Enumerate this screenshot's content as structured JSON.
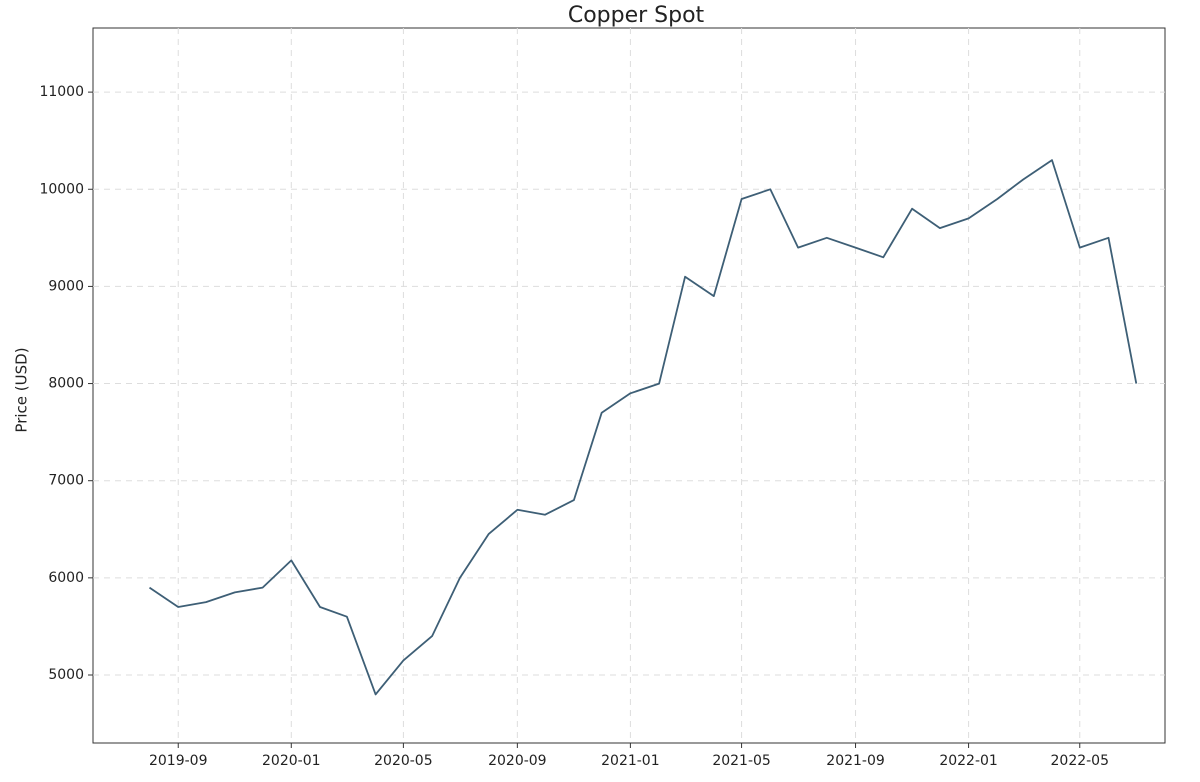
{
  "chart_data": {
    "type": "line",
    "title": "Copper Spot",
    "y_label": "Price (USD)",
    "x": [
      "2019-08",
      "2019-09",
      "2019-10",
      "2019-11",
      "2019-12",
      "2020-01",
      "2020-02",
      "2020-03",
      "2020-04",
      "2020-05",
      "2020-06",
      "2020-07",
      "2020-08",
      "2020-09",
      "2020-10",
      "2020-11",
      "2020-12",
      "2021-01",
      "2021-02",
      "2021-03",
      "2021-04",
      "2021-05",
      "2021-06",
      "2021-07",
      "2021-08",
      "2021-09",
      "2021-10",
      "2021-11",
      "2021-12",
      "2022-01",
      "2022-02",
      "2022-03",
      "2022-04",
      "2022-05",
      "2022-06",
      "2022-07"
    ],
    "series": [
      {
        "name": "Copper Spot",
        "color": "#3e5f76",
        "values": [
          5900,
          5700,
          5750,
          5850,
          5900,
          6180,
          5700,
          5600,
          4800,
          5150,
          5400,
          6000,
          6450,
          6700,
          6650,
          6800,
          7700,
          7900,
          8000,
          9100,
          8900,
          9900,
          10000,
          9400,
          9500,
          9400,
          9300,
          9800,
          9600,
          9700,
          9900,
          10100,
          10300,
          9400,
          9500,
          8000
        ]
      }
    ],
    "xlim": [
      "2019-06",
      "2022-08"
    ],
    "xticks": [
      "2019-09",
      "2020-01",
      "2020-05",
      "2020-09",
      "2021-01",
      "2021-05",
      "2021-09",
      "2022-01",
      "2022-05"
    ],
    "ylim": [
      4300,
      11660
    ],
    "yticks": [
      5000,
      6000,
      7000,
      8000,
      9000,
      10000,
      11000
    ],
    "grid": true
  }
}
